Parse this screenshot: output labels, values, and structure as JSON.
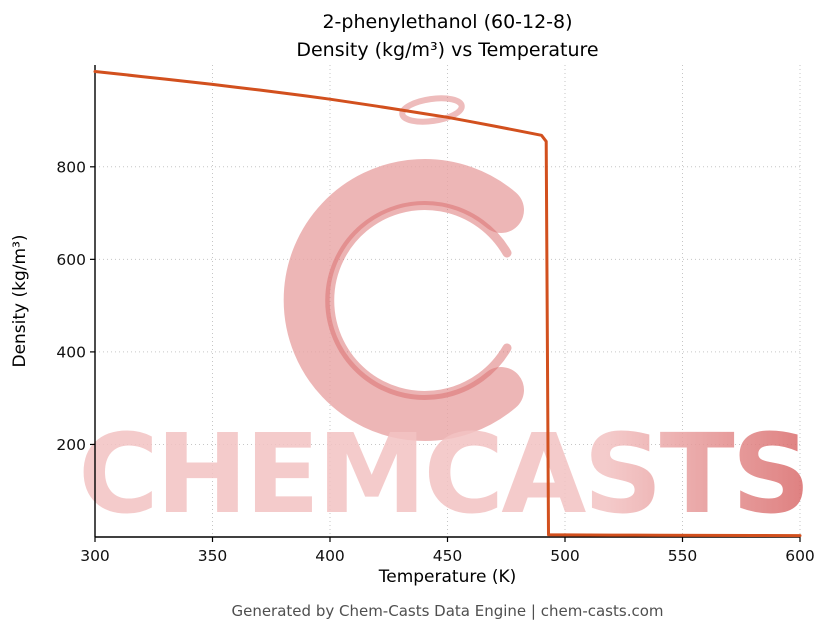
{
  "header": {
    "title_line1": "2-phenylethanol (60-12-8)",
    "title_line2": "Density (kg/m³) vs Temperature"
  },
  "footer": {
    "credit": "Generated by Chem-Casts Data Engine | chem-casts.com"
  },
  "watermark": {
    "brand": "CHEMCASTS",
    "monogram": "C",
    "color_light": "#f3c3c3",
    "color_mid": "#e8a4a4",
    "color_dark": "#d96a6a"
  },
  "chart_data": {
    "type": "line",
    "title": "2-phenylethanol (60-12-8) Density (kg/m³) vs Temperature",
    "xlabel": "Temperature (K)",
    "ylabel": "Density (kg/m³)",
    "xlim": [
      300,
      600
    ],
    "ylim": [
      0,
      1020
    ],
    "x_ticks": [
      300,
      350,
      400,
      450,
      500,
      550,
      600
    ],
    "y_ticks": [
      200,
      400,
      600,
      800
    ],
    "grid": true,
    "legend": false,
    "line_color": "#d2501e",
    "series": [
      {
        "name": "Density",
        "x": [
          300,
          310,
          320,
          330,
          340,
          350,
          360,
          370,
          380,
          390,
          400,
          410,
          420,
          430,
          440,
          450,
          460,
          470,
          480,
          490,
          492,
          493,
          500,
          520,
          540,
          560,
          580,
          600
        ],
        "y": [
          1006,
          1000.5,
          995,
          989.5,
          984,
          978,
          972,
          966,
          959.5,
          953,
          946,
          938.5,
          931,
          923,
          915,
          907,
          897.5,
          888,
          878,
          868,
          855,
          5,
          4.6,
          4.2,
          3.8,
          3.5,
          3.2,
          3.0
        ]
      }
    ]
  }
}
